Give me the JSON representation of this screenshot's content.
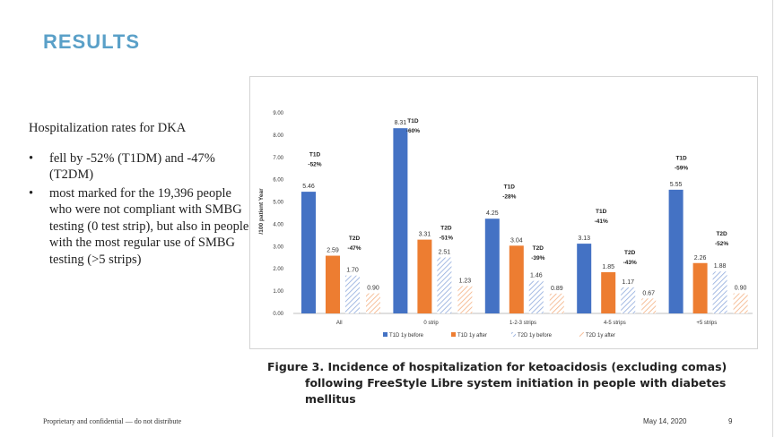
{
  "slide": {
    "title": "RESULTS",
    "heading": "Hospitalization rates for DKA",
    "bullets": [
      "fell by -52% (T1DM) and -47% (T2DM)",
      "most marked for the 19,396 people who were not compliant with SMBG testing (0 test strip), but also in people with the most regular use of SMBG testing (>5 strips)"
    ],
    "bullet_symbol": "•",
    "caption_line1": "Figure 3. Incidence of hospitalization for ketoacidosis (excluding comas)",
    "caption_line2": "following FreeStyle Libre system initiation in people with diabetes mellitus",
    "footer_left": "Proprietary and confidential — do not distribute",
    "footer_date": "May 14, 2020",
    "page_number": "9"
  },
  "colors": {
    "title": "#5aa0c8",
    "t1d_before": "#4472c4",
    "t1d_after": "#ed7d31",
    "t2d_before_hatch": "#8faadc",
    "t2d_after_hatch": "#f4b183"
  },
  "chart_data": {
    "type": "bar",
    "categories": [
      "All",
      "0 strip",
      "1-2-3 strips",
      "4-5 strips",
      "+5 strips"
    ],
    "series": [
      {
        "name": "T1D 1y before",
        "values": [
          5.46,
          8.31,
          4.25,
          3.13,
          5.55
        ],
        "style": "solid",
        "color": "#4472c4"
      },
      {
        "name": "T1D 1y after",
        "values": [
          2.59,
          3.31,
          3.04,
          1.85,
          2.26
        ],
        "style": "solid",
        "color": "#ed7d31"
      },
      {
        "name": "T2D 1y before",
        "values": [
          1.7,
          2.51,
          1.46,
          1.17,
          1.88
        ],
        "style": "hatched",
        "color": "#8faadc"
      },
      {
        "name": "T2D 1y after",
        "values": [
          0.9,
          1.23,
          0.89,
          0.67,
          0.9
        ],
        "style": "hatched",
        "color": "#f4b183"
      }
    ],
    "value_labels": [
      [
        "5.46",
        "8.31",
        "4.25",
        "3.13",
        "5.55"
      ],
      [
        "2.59",
        "3.31",
        "3.04",
        "1.85",
        "2.26"
      ],
      [
        "1.70",
        "2.51",
        "1.46",
        "1.17",
        "1.88"
      ],
      [
        "0.90",
        "1.23",
        "0.89",
        "0.67",
        "0.90"
      ]
    ],
    "legend_labels": [
      "T1D 1y before",
      "T1D 1y after",
      "T2D 1y before",
      "T2D  1y after"
    ],
    "ylabel": "/100 patient Year",
    "ylim": [
      0,
      9
    ],
    "yticks": [
      "0.00",
      "1.00",
      "2.00",
      "3.00",
      "4.00",
      "5.00",
      "6.00",
      "7.00",
      "8.00",
      "9.00"
    ],
    "grid": false,
    "legend_position": "bottom",
    "annotations": [
      {
        "category": "All",
        "group": "T1D",
        "label": "T1D",
        "change": "-52%"
      },
      {
        "category": "All",
        "group": "T2D",
        "label": "T2D",
        "change": "-47%"
      },
      {
        "category": "0 strip",
        "group": "T1D",
        "label": "T1D",
        "change": "-60%"
      },
      {
        "category": "0 strip",
        "group": "T2D",
        "label": "T2D",
        "change": "-51%"
      },
      {
        "category": "1-2-3 strips",
        "group": "T1D",
        "label": "T1D",
        "change": "-28%"
      },
      {
        "category": "1-2-3 strips",
        "group": "T2D",
        "label": "T2D",
        "change": "-39%"
      },
      {
        "category": "4-5 strips",
        "group": "T1D",
        "label": "T1D",
        "change": "-41%"
      },
      {
        "category": "4-5 strips",
        "group": "T2D",
        "label": "T2D",
        "change": "-43%"
      },
      {
        "category": "+5 strips",
        "group": "T1D",
        "label": "T1D",
        "change": "-59%"
      },
      {
        "category": "+5 strips",
        "group": "T2D",
        "label": "T2D",
        "change": "-52%"
      }
    ]
  }
}
